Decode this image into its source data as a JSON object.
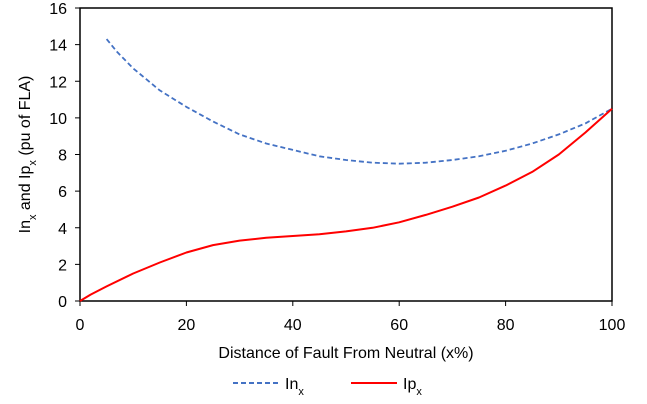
{
  "chart_data": {
    "type": "line",
    "xlabel": "Distance of Fault From Neutral (x%)",
    "ylabel": {
      "parts": [
        {
          "text": "In",
          "sub": false
        },
        {
          "text": "x",
          "sub": true
        },
        {
          "text": " and Ip",
          "sub": false
        },
        {
          "text": "x",
          "sub": true
        },
        {
          "text": " (pu of FLA)",
          "sub": false
        }
      ]
    },
    "xlim": [
      0,
      100
    ],
    "ylim": [
      0,
      16
    ],
    "x_ticks": [
      0,
      20,
      40,
      60,
      80,
      100
    ],
    "y_ticks": [
      0,
      2,
      4,
      6,
      8,
      10,
      12,
      14,
      16
    ],
    "grid": false,
    "legend_position": "bottom-center",
    "series": [
      {
        "name": "In",
        "name_sub": "x",
        "color": "#4472C4",
        "style": "dashed",
        "points": [
          [
            5,
            14.3
          ],
          [
            7,
            13.6
          ],
          [
            10,
            12.7
          ],
          [
            15,
            11.5
          ],
          [
            20,
            10.6
          ],
          [
            25,
            9.8
          ],
          [
            30,
            9.1
          ],
          [
            35,
            8.6
          ],
          [
            40,
            8.25
          ],
          [
            45,
            7.9
          ],
          [
            50,
            7.7
          ],
          [
            55,
            7.55
          ],
          [
            60,
            7.5
          ],
          [
            65,
            7.55
          ],
          [
            70,
            7.7
          ],
          [
            75,
            7.9
          ],
          [
            80,
            8.2
          ],
          [
            85,
            8.6
          ],
          [
            90,
            9.1
          ],
          [
            95,
            9.7
          ],
          [
            100,
            10.5
          ]
        ]
      },
      {
        "name": "Ip",
        "name_sub": "x",
        "color": "#FF0000",
        "style": "solid",
        "points": [
          [
            0,
            0
          ],
          [
            2,
            0.35
          ],
          [
            5,
            0.8
          ],
          [
            10,
            1.5
          ],
          [
            15,
            2.1
          ],
          [
            20,
            2.65
          ],
          [
            25,
            3.05
          ],
          [
            30,
            3.3
          ],
          [
            35,
            3.45
          ],
          [
            40,
            3.55
          ],
          [
            45,
            3.65
          ],
          [
            50,
            3.8
          ],
          [
            55,
            4.0
          ],
          [
            60,
            4.3
          ],
          [
            65,
            4.7
          ],
          [
            70,
            5.15
          ],
          [
            75,
            5.65
          ],
          [
            80,
            6.3
          ],
          [
            85,
            7.05
          ],
          [
            90,
            8.0
          ],
          [
            95,
            9.2
          ],
          [
            100,
            10.5
          ]
        ]
      }
    ]
  }
}
